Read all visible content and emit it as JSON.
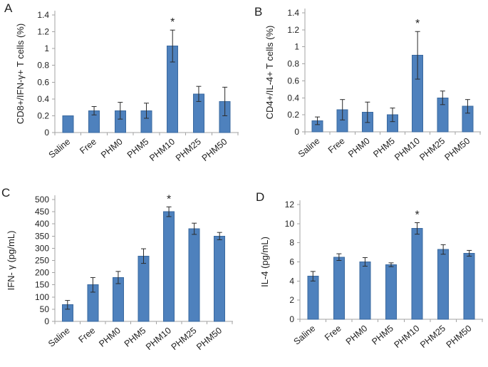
{
  "figure": {
    "background": "#ffffff",
    "bar_color": "#4e81bd",
    "bar_border_color": "#3a699f",
    "error_bar_color": "#2b2b2b",
    "axis_color": "#a3a3a3",
    "text_color": "#1f1f1f",
    "significance_marker": "*"
  },
  "chart_data": [
    {
      "panel": "A",
      "type": "bar",
      "title": "",
      "xlabel": "",
      "ylabel": "CD8+/IFN-γ+ T cells (%)",
      "categories": [
        "Saline",
        "Free",
        "PHM0",
        "PHM5",
        "PHM10",
        "PHM25",
        "PHM50"
      ],
      "values": [
        0.2,
        0.26,
        0.26,
        0.26,
        1.03,
        0.46,
        0.37
      ],
      "errors": [
        0,
        0.05,
        0.1,
        0.09,
        0.19,
        0.09,
        0.17
      ],
      "ylim": [
        0,
        1.4
      ],
      "ytick_labels": [
        "0",
        "0.2",
        "0.4",
        "0.6",
        "0.8",
        "1",
        "1.2",
        "1.4"
      ],
      "significant_category": "PHM10",
      "significance_index": 4,
      "legend": "none",
      "grid": "off"
    },
    {
      "panel": "B",
      "type": "bar",
      "title": "",
      "xlabel": "",
      "ylabel": "CD4+/IL-4+ T cells (%)",
      "categories": [
        "Saline",
        "Free",
        "PHM0",
        "PHM5",
        "PHM10",
        "PHM25",
        "PHM50"
      ],
      "values": [
        0.13,
        0.26,
        0.23,
        0.2,
        0.9,
        0.4,
        0.3
      ],
      "errors": [
        0.045,
        0.12,
        0.12,
        0.08,
        0.28,
        0.08,
        0.08
      ],
      "ylim": [
        0,
        1.4
      ],
      "ytick_labels": [
        "0",
        "0.2",
        "0.4",
        "0.6",
        "0.8",
        "1",
        "1.2",
        "1.4"
      ],
      "significant_category": "PHM10",
      "significance_index": 4,
      "legend": "none",
      "grid": "off"
    },
    {
      "panel": "C",
      "type": "bar",
      "title": "",
      "xlabel": "",
      "ylabel": "IFN- γ  (pg/mL)",
      "categories": [
        "Saline",
        "Free",
        "PHM0",
        "PHM5",
        "PHM10",
        "PHM25",
        "PHM50"
      ],
      "values": [
        68,
        150,
        180,
        268,
        450,
        380,
        350
      ],
      "errors": [
        18,
        30,
        25,
        30,
        20,
        23,
        15
      ],
      "ylim": [
        0,
        500
      ],
      "ytick_labels": [
        "0",
        "50",
        "100",
        "150",
        "200",
        "250",
        "300",
        "350",
        "400",
        "450",
        "500"
      ],
      "significant_category": "PHM10",
      "significance_index": 4,
      "legend": "none",
      "grid": "off"
    },
    {
      "panel": "D",
      "type": "bar",
      "title": "",
      "xlabel": "",
      "ylabel": "IL-4 (pg/mL)",
      "categories": [
        "Saline",
        "Free",
        "PHM0",
        "PHM5",
        "PHM10",
        "PHM25",
        "PHM50"
      ],
      "values": [
        4.5,
        6.5,
        6.0,
        5.7,
        9.5,
        7.3,
        6.9
      ],
      "errors": [
        0.5,
        0.35,
        0.45,
        0.2,
        0.6,
        0.5,
        0.3
      ],
      "ylim": [
        0,
        12
      ],
      "ytick_labels": [
        "0",
        "2",
        "4",
        "6",
        "8",
        "10",
        "12"
      ],
      "significant_category": "PHM10",
      "significance_index": 4,
      "legend": "none",
      "grid": "off"
    }
  ]
}
